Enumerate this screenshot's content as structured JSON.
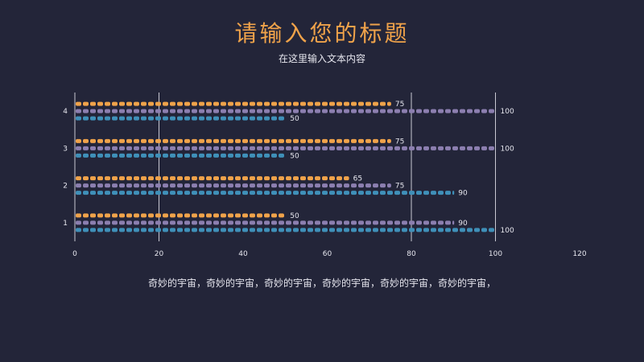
{
  "slide": {
    "title": "请输入您的标题",
    "subtitle": "在这里输入文本内容",
    "footer": "奇妙的宇宙，奇妙的宇宙，奇妙的宇宙，奇妙的宇宙，奇妙的宇宙，奇妙的宇宙，"
  },
  "colors": {
    "background": "#232539",
    "orange": "#f0a34a",
    "purple": "#8c7fb0",
    "teal": "#3f90b9",
    "gridline": "#e6e6ee",
    "text": "#e6e6ee"
  },
  "chart_data": {
    "type": "bar",
    "orientation": "horizontal",
    "title": "",
    "xlabel": "",
    "ylabel": "",
    "categories": [
      "1",
      "2",
      "3",
      "4"
    ],
    "series": [
      {
        "values": [
          50,
          65,
          75,
          75
        ],
        "color": "#f0a34a"
      },
      {
        "values": [
          90,
          75,
          100,
          100
        ],
        "color": "#8c7fb0"
      },
      {
        "values": [
          100,
          90,
          50,
          50
        ],
        "color": "#3f90b9"
      }
    ],
    "xlim": [
      0,
      120
    ],
    "xticks": [
      0,
      20,
      40,
      60,
      80,
      100,
      120
    ],
    "xtick_labels": [
      "0",
      "20",
      "40",
      "60",
      "80",
      "100",
      "120"
    ],
    "grid": true,
    "legend": "none",
    "mark_style": "pictograph"
  }
}
